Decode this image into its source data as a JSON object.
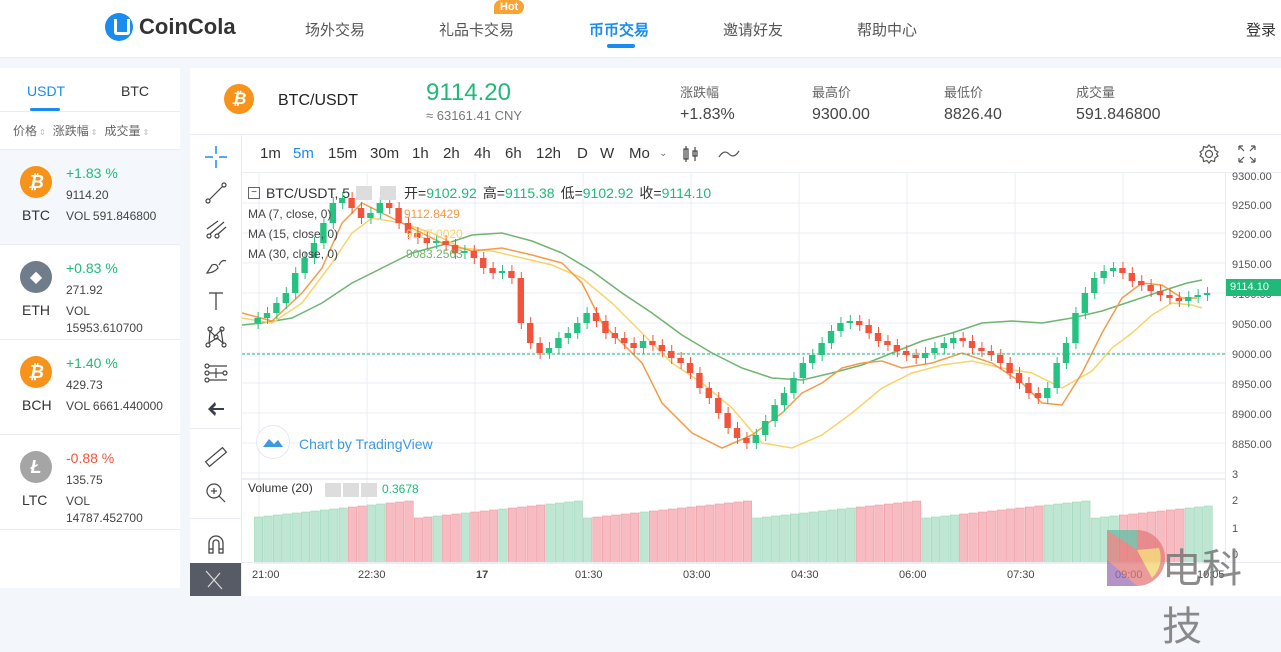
{
  "header": {
    "brand": "CoinCola",
    "nav": [
      {
        "label": "场外交易",
        "active": false
      },
      {
        "label": "礼品卡交易",
        "active": false,
        "badge": "Hot"
      },
      {
        "label": "币币交易",
        "active": true
      },
      {
        "label": "邀请好友",
        "active": false
      },
      {
        "label": "帮助中心",
        "active": false
      }
    ],
    "login": "登录"
  },
  "sidebar": {
    "tabs": [
      {
        "label": "USDT",
        "active": true
      },
      {
        "label": "BTC",
        "active": false
      }
    ],
    "sort_headers": [
      "价格",
      "涨跌幅",
      "成交量"
    ],
    "coins": [
      {
        "symbol": "BTC",
        "change": "+1.83 %",
        "price": "9114.20",
        "volume": "VOL 591.846800",
        "icon": "bitcoin-icon",
        "color": "#f7931a",
        "trend": "up",
        "selected": true
      },
      {
        "symbol": "ETH",
        "change": "+0.83 %",
        "price": "271.92",
        "volume": "VOL 15953.610700",
        "icon": "ethereum-icon",
        "color": "#6f7c8b",
        "trend": "up",
        "selected": false
      },
      {
        "symbol": "BCH",
        "change": "+1.40 %",
        "price": "429.73",
        "volume": "VOL 6661.440000",
        "icon": "bitcoin-cash-icon",
        "color": "#f7931a",
        "trend": "up",
        "selected": false
      },
      {
        "symbol": "LTC",
        "change": "-0.88 %",
        "price": "135.75",
        "volume": "VOL 14787.452700",
        "icon": "litecoin-icon",
        "color": "#a5a5a5",
        "trend": "down",
        "selected": false
      }
    ]
  },
  "ticker": {
    "pair": "BTC/USDT",
    "price": "9114.20",
    "cny": "≈ 63161.41 CNY",
    "stats": [
      {
        "label": "涨跌幅",
        "value": "+1.83%",
        "trend": "up"
      },
      {
        "label": "最高价",
        "value": "9300.00"
      },
      {
        "label": "最低价",
        "value": "8826.40"
      },
      {
        "label": "成交量",
        "value": "591.846800"
      }
    ]
  },
  "chart": {
    "intervals": [
      "1m",
      "5m",
      "15m",
      "30m",
      "1h",
      "2h",
      "4h",
      "6h",
      "12h",
      "D",
      "W",
      "Mo"
    ],
    "active_interval": "5m",
    "legend": {
      "title": "BTC/USDT, 5",
      "open_label": "开=",
      "open": "9102.92",
      "high_label": "高=",
      "high": "9115.38",
      "low_label": "低=",
      "low": "9102.92",
      "close_label": "收=",
      "close": "9114.10"
    },
    "ma": [
      {
        "label": "MA (7, close, 0)",
        "value": "9112.8429",
        "color": "#f39c4a"
      },
      {
        "label": "MA (15, close, 0)",
        "value": "9127.0020",
        "color": "#f7d46a"
      },
      {
        "label": "MA (30, close, 0)",
        "value": "9083.2563",
        "color": "#6fb56f"
      }
    ],
    "price_axis": [
      "9300.00",
      "9250.00",
      "9200.00",
      "9150.00",
      "9100.00",
      "9050.00",
      "9000.00",
      "8950.00",
      "8900.00",
      "8850.00"
    ],
    "current_price": "9114.10",
    "watermark": "Chart by TradingView",
    "volume": {
      "label": "Volume (20)",
      "value": "0.3678",
      "axis": [
        "3",
        "2",
        "1",
        "0"
      ]
    },
    "time_axis": [
      "21:00",
      "22:30",
      "17",
      "01:30",
      "03:00",
      "04:30",
      "06:00",
      "07:30",
      "09:00",
      "10:05"
    ],
    "colors": {
      "up": "#26c281",
      "down": "#f2533a",
      "vol_up": "#bfe6d2",
      "vol_down": "#f7bcc2"
    }
  },
  "watermark": {
    "text": "电科技"
  }
}
